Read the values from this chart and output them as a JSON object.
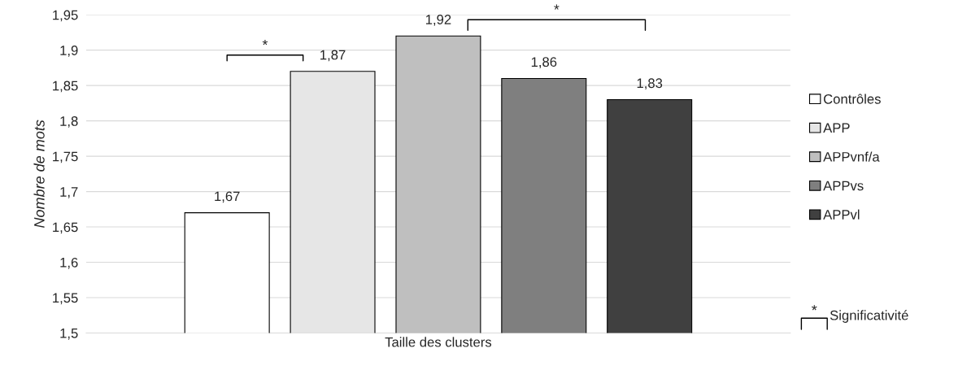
{
  "chart_data": {
    "type": "bar",
    "categories": [
      "Taille des clusters"
    ],
    "ylabel": "Nombre de mots",
    "series": [
      {
        "name": "Contrôles",
        "color": "#ffffff",
        "values": [
          1.67
        ],
        "value_labels": [
          "1,67"
        ]
      },
      {
        "name": "APP",
        "color": "#e6e6e6",
        "values": [
          1.87
        ],
        "value_labels": [
          "1,87"
        ]
      },
      {
        "name": "APPvnf/a",
        "color": "#bfbfbf",
        "values": [
          1.92
        ],
        "value_labels": [
          "1,92"
        ]
      },
      {
        "name": "APPvs",
        "color": "#7f7f7f",
        "values": [
          1.86
        ],
        "value_labels": [
          "1,86"
        ]
      },
      {
        "name": "APPvl",
        "color": "#404040",
        "values": [
          1.83
        ],
        "value_labels": [
          "1,83"
        ]
      }
    ],
    "ylim": [
      1.5,
      1.95
    ],
    "yticks": [
      {
        "value": 1.5,
        "label": "1,5"
      },
      {
        "value": 1.55,
        "label": "1,55"
      },
      {
        "value": 1.6,
        "label": "1,6"
      },
      {
        "value": 1.65,
        "label": "1,65"
      },
      {
        "value": 1.7,
        "label": "1,7"
      },
      {
        "value": 1.75,
        "label": "1,75"
      },
      {
        "value": 1.8,
        "label": "1,8"
      },
      {
        "value": 1.85,
        "label": "1,85"
      },
      {
        "value": 1.9,
        "label": "1,9"
      },
      {
        "value": 1.95,
        "label": "1,95"
      }
    ],
    "grid": "y",
    "legend": "right",
    "annotations": [
      "*",
      "*",
      "*",
      "Significativité"
    ]
  }
}
